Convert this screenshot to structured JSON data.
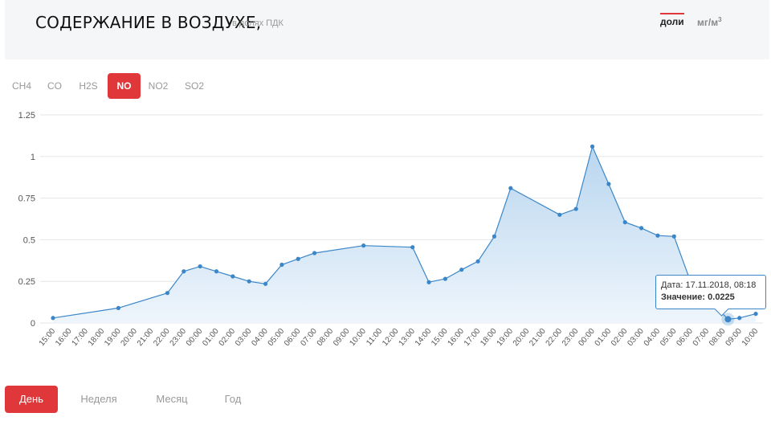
{
  "header": {
    "title": "СОДЕРЖАНИЕ В ВОЗДУХЕ,",
    "subtitle": "в долях ПДК",
    "units": [
      {
        "label": "доли",
        "active": true
      },
      {
        "label": "мг/м",
        "sup": "3",
        "active": false
      }
    ]
  },
  "gas_tabs": [
    {
      "label": "CH4",
      "active": false
    },
    {
      "label": "CO",
      "active": false
    },
    {
      "label": "H2S",
      "active": false
    },
    {
      "label": "NO",
      "active": true
    },
    {
      "label": "NO2",
      "active": false
    },
    {
      "label": "SO2",
      "active": false
    }
  ],
  "tooltip": {
    "date_label": "Дата:",
    "date_value": "17.11.2018, 08:18",
    "value_label": "Значение:",
    "value_value": "0.0225"
  },
  "periods": [
    {
      "label": "День",
      "active": true
    },
    {
      "label": "Неделя",
      "active": false
    },
    {
      "label": "Месяц",
      "active": false
    },
    {
      "label": "Год",
      "active": false
    }
  ],
  "colors": {
    "accent": "#e0383a",
    "line": "#3a86c8",
    "fill_top": "#b9d6ef",
    "fill_bottom": "#eef5fc"
  },
  "chart_data": {
    "type": "area",
    "x": [
      "15:00",
      "16:00",
      "17:00",
      "18:00",
      "19:00",
      "20:00",
      "21:00",
      "22:00",
      "23:00",
      "00:00",
      "01:00",
      "02:00",
      "03:00",
      "04:00",
      "05:00",
      "06:00",
      "07:00",
      "08:00",
      "09:00",
      "10:00",
      "11:00",
      "12:00",
      "13:00",
      "14:00",
      "15:00",
      "16:00",
      "17:00",
      "18:00",
      "19:00",
      "20:00",
      "21:00",
      "22:00",
      "23:00",
      "00:00",
      "01:00",
      "02:00",
      "03:00",
      "04:00",
      "05:00",
      "06:00",
      "07:00",
      "08:00",
      "09:00",
      "10:00"
    ],
    "y_ticks": [
      "0",
      "0.25",
      "0.5",
      "0.75",
      "1",
      "1.25"
    ],
    "ylim": [
      0,
      1.25
    ],
    "series": [
      {
        "points": [
          {
            "x": 0,
            "y": 0.03
          },
          {
            "x": 4,
            "y": 0.09
          },
          {
            "x": 7,
            "y": 0.18
          },
          {
            "x": 8,
            "y": 0.31
          },
          {
            "x": 9,
            "y": 0.34
          },
          {
            "x": 10,
            "y": 0.31
          },
          {
            "x": 11,
            "y": 0.28
          },
          {
            "x": 12,
            "y": 0.25
          },
          {
            "x": 13,
            "y": 0.235
          },
          {
            "x": 14,
            "y": 0.35
          },
          {
            "x": 15,
            "y": 0.385
          },
          {
            "x": 16,
            "y": 0.42
          },
          {
            "x": 19,
            "y": 0.465
          },
          {
            "x": 22,
            "y": 0.455
          },
          {
            "x": 23,
            "y": 0.245
          },
          {
            "x": 24,
            "y": 0.265
          },
          {
            "x": 25,
            "y": 0.32
          },
          {
            "x": 26,
            "y": 0.37
          },
          {
            "x": 27,
            "y": 0.52
          },
          {
            "x": 28,
            "y": 0.81
          },
          {
            "x": 31,
            "y": 0.65
          },
          {
            "x": 32,
            "y": 0.685
          },
          {
            "x": 33,
            "y": 1.06
          },
          {
            "x": 34,
            "y": 0.835
          },
          {
            "x": 35,
            "y": 0.605
          },
          {
            "x": 36,
            "y": 0.57
          },
          {
            "x": 37,
            "y": 0.525
          },
          {
            "x": 38,
            "y": 0.52
          },
          {
            "x": 39,
            "y": 0.25
          },
          {
            "x": 41.3,
            "y": 0.0225
          },
          {
            "x": 42,
            "y": 0.03
          },
          {
            "x": 43,
            "y": 0.055
          }
        ]
      }
    ],
    "highlight_index": 29,
    "grid": true
  }
}
